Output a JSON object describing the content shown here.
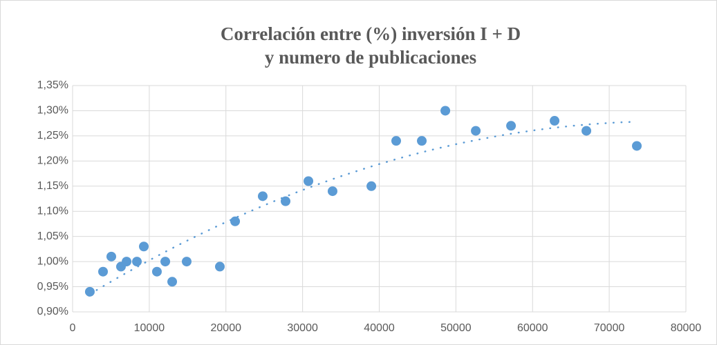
{
  "chart_data": {
    "type": "scatter",
    "title": "Correlación entre (%) inversión I + D y numero de publicaciones",
    "series": [
      {
        "color": "#5b9bd5",
        "x": [
          2250,
          3970,
          5050,
          6310,
          7040,
          8390,
          9290,
          11000,
          12090,
          12990,
          14880,
          19210,
          21200,
          24800,
          27780,
          30760,
          33910,
          38970,
          42210,
          45550,
          48620,
          52590,
          57190,
          62870,
          67020,
          73600
        ],
        "values": [
          0.94,
          0.98,
          1.01,
          0.99,
          1.0,
          1.0,
          1.03,
          0.98,
          1.0,
          0.96,
          1.0,
          0.99,
          1.08,
          1.13,
          1.12,
          1.16,
          1.14,
          1.15,
          1.24,
          1.24,
          1.3,
          1.26,
          1.27,
          1.28,
          1.26,
          1.23
        ]
      }
    ],
    "trendline": "polynomial",
    "xlim": [
      0,
      80000
    ],
    "xticks": [
      0,
      10000,
      20000,
      30000,
      40000,
      50000,
      60000,
      70000,
      80000
    ],
    "ylim": [
      0.9,
      1.35
    ],
    "yticks": [
      {
        "value": 0.9,
        "label": "0,90%"
      },
      {
        "value": 0.95,
        "label": "0,95%"
      },
      {
        "value": 1.0,
        "label": "1,00%"
      },
      {
        "value": 1.05,
        "label": "1,05%"
      },
      {
        "value": 1.1,
        "label": "1,10%"
      },
      {
        "value": 1.15,
        "label": "1,15%"
      },
      {
        "value": 1.2,
        "label": "1,20%"
      },
      {
        "value": 1.25,
        "label": "1,25%"
      },
      {
        "value": 1.3,
        "label": "1,30%"
      },
      {
        "value": 1.35,
        "label": "1,35%"
      }
    ],
    "grid": true
  }
}
